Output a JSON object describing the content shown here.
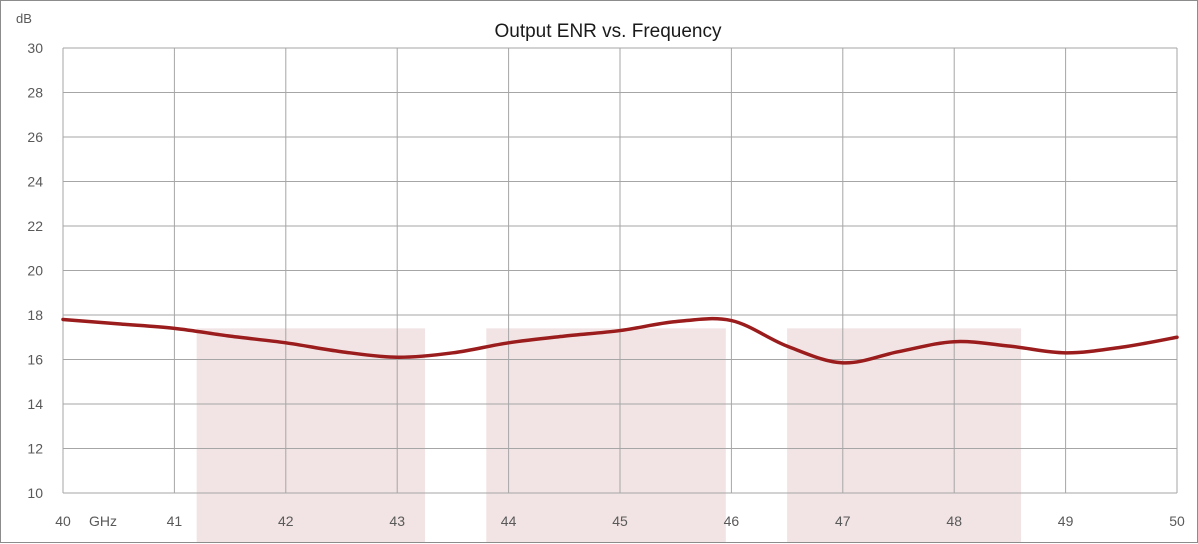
{
  "chart_data": {
    "type": "line",
    "title": "Output ENR vs. Frequency",
    "ylabel": "dB",
    "xlabel": "GHz",
    "xlim": [
      40,
      50
    ],
    "ylim": [
      10,
      30
    ],
    "x_ticks": [
      40,
      41,
      42,
      43,
      44,
      45,
      46,
      47,
      48,
      49,
      50
    ],
    "y_ticks": [
      10,
      12,
      14,
      16,
      18,
      20,
      22,
      24,
      26,
      28,
      30
    ],
    "grid": true,
    "highlight_bands": [
      {
        "x_start": 41.2,
        "x_end": 43.25,
        "y_top": 17.4
      },
      {
        "x_start": 43.8,
        "x_end": 45.95,
        "y_top": 17.4
      },
      {
        "x_start": 46.5,
        "x_end": 48.6,
        "y_top": 17.4
      }
    ],
    "series": [
      {
        "x": [
          40,
          40.5,
          41,
          41.5,
          42,
          42.5,
          43,
          43.5,
          44,
          44.5,
          45,
          45.5,
          46,
          46.5,
          47,
          47.5,
          48,
          48.5,
          49,
          49.5,
          50
        ],
        "values": [
          17.8,
          17.6,
          17.4,
          17.05,
          16.75,
          16.35,
          16.1,
          16.3,
          16.75,
          17.05,
          17.3,
          17.7,
          17.75,
          16.6,
          15.85,
          16.35,
          16.8,
          16.6,
          16.3,
          16.55,
          17.0
        ],
        "color": "#9b1c1c"
      }
    ]
  },
  "colors": {
    "series_line": "#9b1c1c",
    "band_fill": "#f2e4e4",
    "grid": "#a6a6a6",
    "frame": "#8c8c8c"
  }
}
